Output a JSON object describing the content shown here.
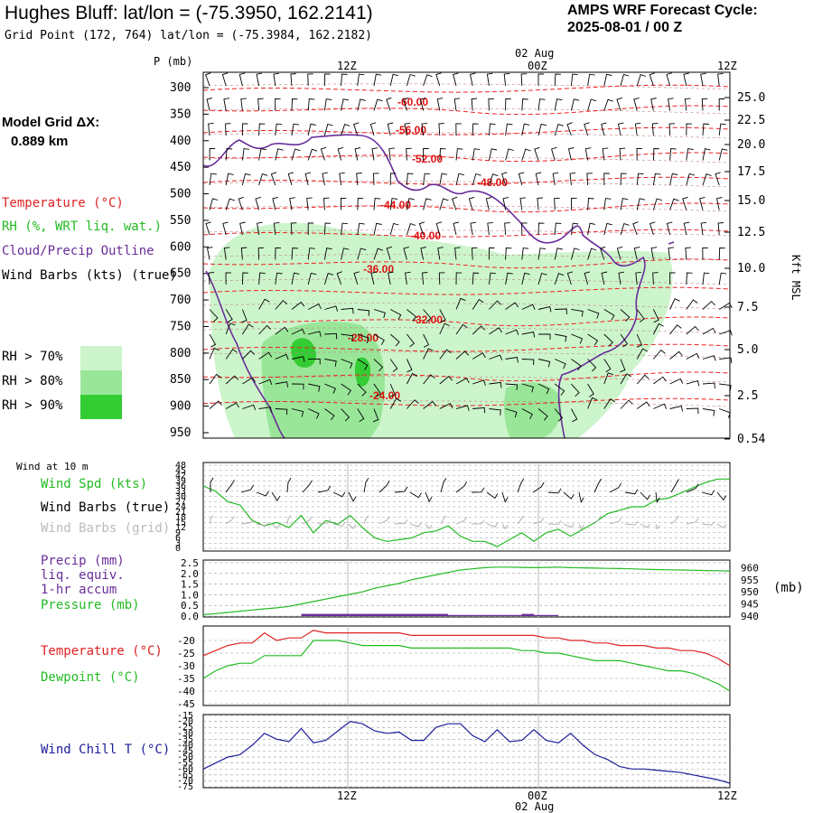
{
  "header": {
    "title": "Hughes Bluff:  lat/lon = (-75.3950, 162.2141)",
    "grid_point": "Grid Point (172, 764) lat/lon = (-75.3984, 162.2182)",
    "cycle_label": "AMPS WRF Forecast Cycle:",
    "cycle_value": "2025-08-01 / 00  Z"
  },
  "sidebar": {
    "model_grid_label": "Model Grid ΔX:",
    "model_grid_value": "0.889 km",
    "legend": [
      {
        "label": "Temperature (°C)",
        "color": "#dd2222"
      },
      {
        "label": "RH (%, WRT liq. wat.)",
        "color": "#22bb22"
      },
      {
        "label": "Cloud/Precip Outline",
        "color": "#6a2d9a"
      },
      {
        "label": "Wind Barbs (kts) (true)",
        "color": "#000000"
      }
    ],
    "rh_keys": [
      {
        "label": "RH > 70%",
        "color": "#ccf5cc"
      },
      {
        "label": "RH > 80%",
        "color": "#99e699"
      },
      {
        "label": "RH > 90%",
        "color": "#33cc33"
      }
    ]
  },
  "time_axis": {
    "top_labels": [
      "12Z",
      "00Z",
      "12Z"
    ],
    "date_label": "02 Aug",
    "bottom_labels": [
      "12Z",
      "00Z",
      "12Z"
    ],
    "bottom_date": "02 Aug"
  },
  "chart_data": [
    {
      "type": "heatmap",
      "name": "Cross section",
      "ylabel": "P (mb)",
      "y2label": "Kft MSL",
      "pressure_ticks": [
        300,
        350,
        400,
        450,
        500,
        550,
        600,
        650,
        700,
        750,
        800,
        850,
        900,
        950
      ],
      "height_ticks": [
        "25.0",
        "22.5",
        "20.0",
        "17.5",
        "15.0",
        "12.5",
        "10.0",
        "7.5",
        "5.0",
        "2.5",
        "0.54"
      ],
      "temperature_labels": [
        "-60.00",
        "-56.00",
        "-52.00",
        "-48.00",
        "-44.00",
        "-40.00",
        "-36.00",
        "-32.00",
        "-28.00",
        "-24.00"
      ],
      "grid": true
    },
    {
      "type": "line",
      "panel_title": "Wind at 10 m",
      "series_labels": [
        "Wind Spd (kts)",
        "Wind Barbs (true)",
        "Wind Barbs (grid)"
      ],
      "yticks": [
        0,
        3,
        6,
        9,
        12,
        15,
        18,
        21,
        24,
        27,
        30,
        33,
        36,
        39,
        42,
        45,
        48
      ],
      "ylim": [
        0,
        48
      ],
      "series": [
        {
          "name": "Wind Spd (kts)",
          "color": "#22bb22",
          "values": [
            36,
            33,
            27,
            25,
            16,
            13,
            15,
            12,
            19,
            9,
            16,
            14,
            19,
            12,
            6,
            4,
            5,
            6,
            9,
            10,
            13,
            7,
            4,
            4,
            1,
            5,
            9,
            4,
            9,
            11,
            7,
            11,
            15,
            20,
            22,
            24,
            24,
            28,
            29,
            32,
            35,
            38,
            40,
            40
          ]
        }
      ]
    },
    {
      "type": "line",
      "series_labels": [
        "Precip (mm)",
        "liq. equiv.",
        "1-hr accum",
        "Pressure (mb)"
      ],
      "yticks": [
        "0.0",
        "0.5",
        "1.0",
        "1.5",
        "2.0",
        "2.5"
      ],
      "ylim": [
        0,
        2.5
      ],
      "y2ticks": [
        "940",
        "945",
        "950",
        "955",
        "960"
      ],
      "y2lim": [
        940,
        962
      ],
      "y2unit": "(mb)",
      "series": [
        {
          "name": "Pressure (mb)",
          "color": "#22bb22",
          "values": [
            940.6,
            941.0,
            941.5,
            942.0,
            942.5,
            943.0,
            943.4,
            944.0,
            945.0,
            946.0,
            947.0,
            948.0,
            949.0,
            950.0,
            951.5,
            952.5,
            953.5,
            955.0,
            956.0,
            957.0,
            958.0,
            959.0,
            959.5,
            960.0,
            960.2,
            960.2,
            960.1,
            960.0,
            960.1,
            960.2,
            960.0,
            959.9,
            959.8,
            959.7,
            959.6,
            959.5,
            959.3,
            959.2,
            959.1,
            959.0,
            958.9,
            958.8,
            958.7,
            958.6
          ]
        },
        {
          "name": "Precip (mm)",
          "color": "#6a2d9a",
          "values": [
            0,
            0,
            0,
            0,
            0,
            0,
            0,
            0,
            0.1,
            0.1,
            0.1,
            0.1,
            0.1,
            0.1,
            0.1,
            0.1,
            0.1,
            0.1,
            0.1,
            0.1,
            0.05,
            0.05,
            0.05,
            0.05,
            0.05,
            0.05,
            0.1,
            0.05,
            0.05,
            0,
            0,
            0,
            0,
            0,
            0,
            0,
            0,
            0,
            0,
            0,
            0,
            0,
            0,
            0
          ]
        }
      ]
    },
    {
      "type": "line",
      "series_labels": [
        "Temperature (°C)",
        "Dewpoint (°C)"
      ],
      "yticks": [
        -45,
        -40,
        -35,
        -30,
        -25,
        -20
      ],
      "ylim": [
        -45,
        -15
      ],
      "series": [
        {
          "name": "Temperature (°C)",
          "color": "#dd2222",
          "values": [
            -26,
            -24,
            -22,
            -21,
            -21,
            -17,
            -20,
            -19,
            -19,
            -16,
            -17,
            -17,
            -17,
            -17,
            -17,
            -17,
            -17,
            -18,
            -18,
            -18,
            -18,
            -18,
            -18,
            -18,
            -18,
            -18,
            -18,
            -18,
            -19,
            -19,
            -20,
            -20,
            -21,
            -21,
            -22,
            -22,
            -22,
            -23,
            -23,
            -24,
            -24,
            -25,
            -27,
            -30
          ]
        },
        {
          "name": "Dewpoint (°C)",
          "color": "#22bb22",
          "values": [
            -35,
            -32,
            -30,
            -29,
            -29,
            -26,
            -26,
            -26,
            -26,
            -20,
            -20,
            -20,
            -21,
            -22,
            -22,
            -22,
            -22,
            -23,
            -23,
            -23,
            -23,
            -23,
            -23,
            -23,
            -23,
            -23,
            -24,
            -24,
            -25,
            -25,
            -26,
            -27,
            -28,
            -28,
            -28,
            -29,
            -30,
            -31,
            -32,
            -32,
            -33,
            -35,
            -37,
            -40
          ]
        }
      ]
    },
    {
      "type": "line",
      "series_labels": [
        "Wind Chill T (°C)"
      ],
      "yticks": [
        -75,
        -70,
        -65,
        -60,
        -55,
        -50,
        -45,
        -40,
        -35,
        -30,
        -25,
        -20,
        -15
      ],
      "ylim": [
        -75,
        -15
      ],
      "series": [
        {
          "name": "Wind Chill T (°C)",
          "color": "#1c1c99",
          "values": [
            -60,
            -55,
            -50,
            -48,
            -40,
            -30,
            -35,
            -37,
            -26,
            -38,
            -36,
            -28,
            -20,
            -22,
            -28,
            -30,
            -29,
            -36,
            -36,
            -25,
            -22,
            -22,
            -32,
            -37,
            -27,
            -37,
            -36,
            -27,
            -36,
            -38,
            -30,
            -40,
            -48,
            -52,
            -58,
            -60,
            -60,
            -61,
            -62,
            -63,
            -65,
            -67,
            -69,
            -72
          ]
        }
      ]
    }
  ]
}
